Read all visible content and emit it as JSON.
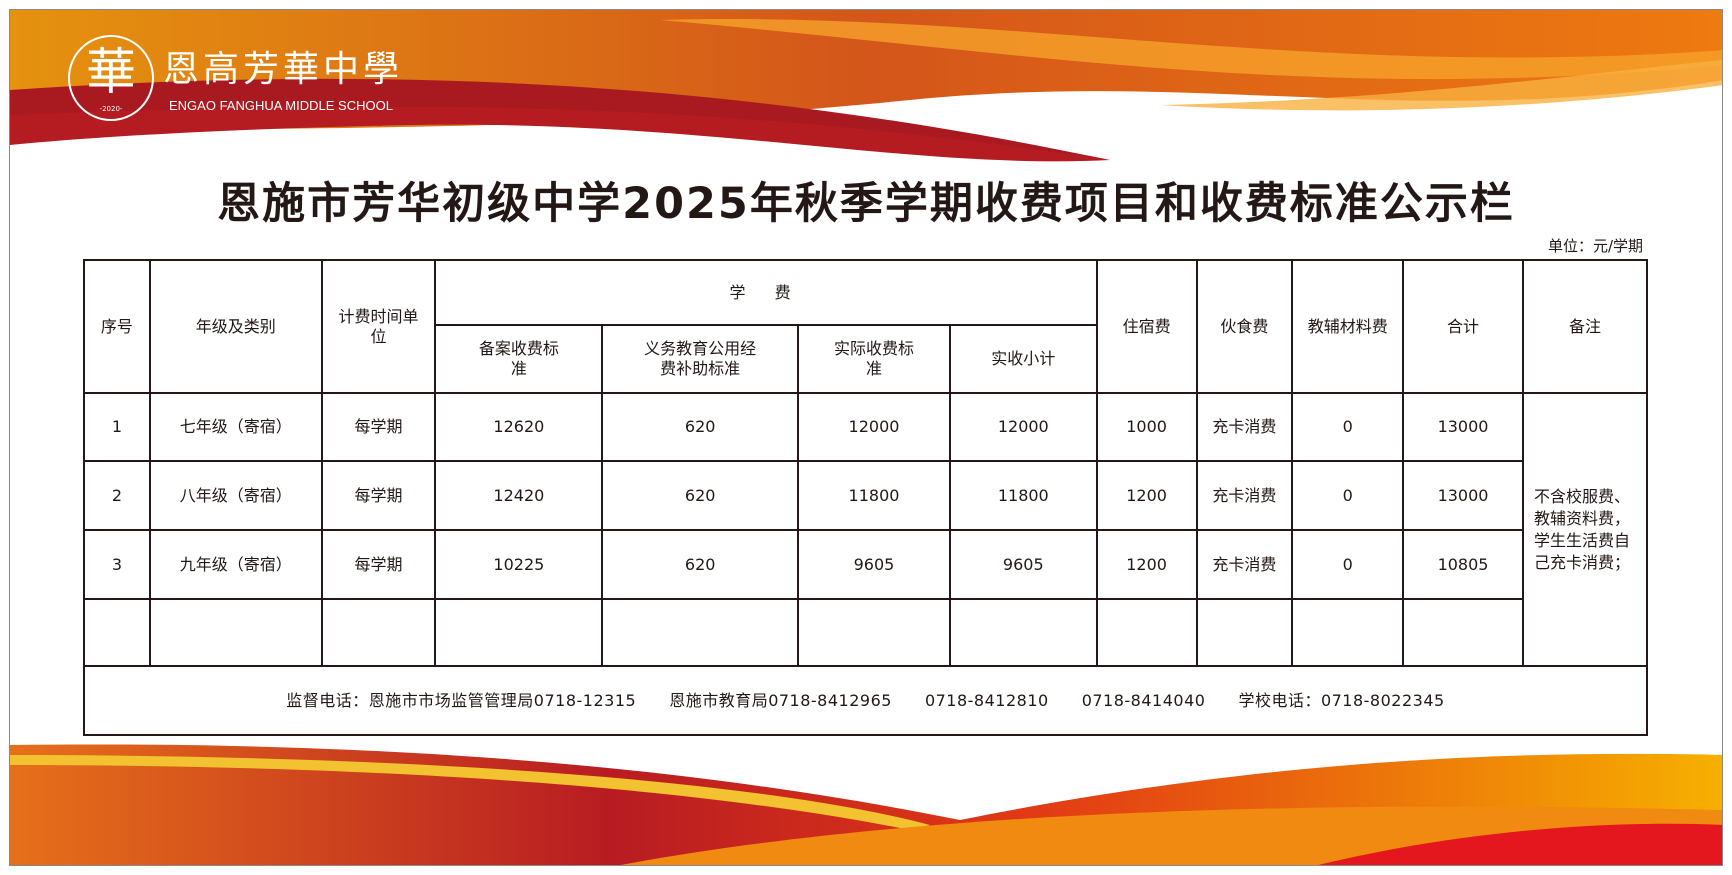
{
  "header": {
    "school_name_cn": "恩高芳華中學",
    "school_name_en": "ENGAO FANGHUA MIDDLE SCHOOL",
    "logo_glyph": "華",
    "logo_year": "-2020-"
  },
  "title": "恩施市芳华初级中学2025年秋季学期收费项目和收费标准公示栏",
  "unit": "单位：元/学期",
  "table": {
    "headers": {
      "no": "序号",
      "grade": "年级及类别",
      "billing_unit": "计费时间单位",
      "tuition": "学 费",
      "filed_standard": "备案收费标准",
      "subsidy": "义务教育公用经费补助标准",
      "actual_standard": "实际收费标准",
      "subtotal": "实收小计",
      "lodging": "住宿费",
      "meals": "伙食费",
      "materials": "教辅材料费",
      "total": "合计",
      "remarks": "备注"
    },
    "rows": [
      {
        "no": "1",
        "grade": "七年级（寄宿）",
        "unit": "每学期",
        "filed": "12620",
        "subsidy": "620",
        "actual": "12000",
        "subtotal": "12000",
        "lodging": "1000",
        "meals": "充卡消费",
        "materials": "0",
        "total": "13000"
      },
      {
        "no": "2",
        "grade": "八年级（寄宿）",
        "unit": "每学期",
        "filed": "12420",
        "subsidy": "620",
        "actual": "11800",
        "subtotal": "11800",
        "lodging": "1200",
        "meals": "充卡消费",
        "materials": "0",
        "total": "13000"
      },
      {
        "no": "3",
        "grade": "九年级（寄宿）",
        "unit": "每学期",
        "filed": "10225",
        "subsidy": "620",
        "actual": "9605",
        "subtotal": "9605",
        "lodging": "1200",
        "meals": "充卡消费",
        "materials": "0",
        "total": "10805"
      }
    ],
    "remarks": "不含校服费、教辅资料费，学生生活费自己充卡消费；",
    "footer": "监督电话：恩施市市场监管管理局0718-12315　　恩施市教育局0718-8412965　　0718-8412810　　0718-8414040　　学校电话：0718-8022345"
  },
  "colors": {
    "red": "#b81c22",
    "orange": "#ee7d12",
    "yellow": "#f6b000",
    "text": "#231815"
  }
}
